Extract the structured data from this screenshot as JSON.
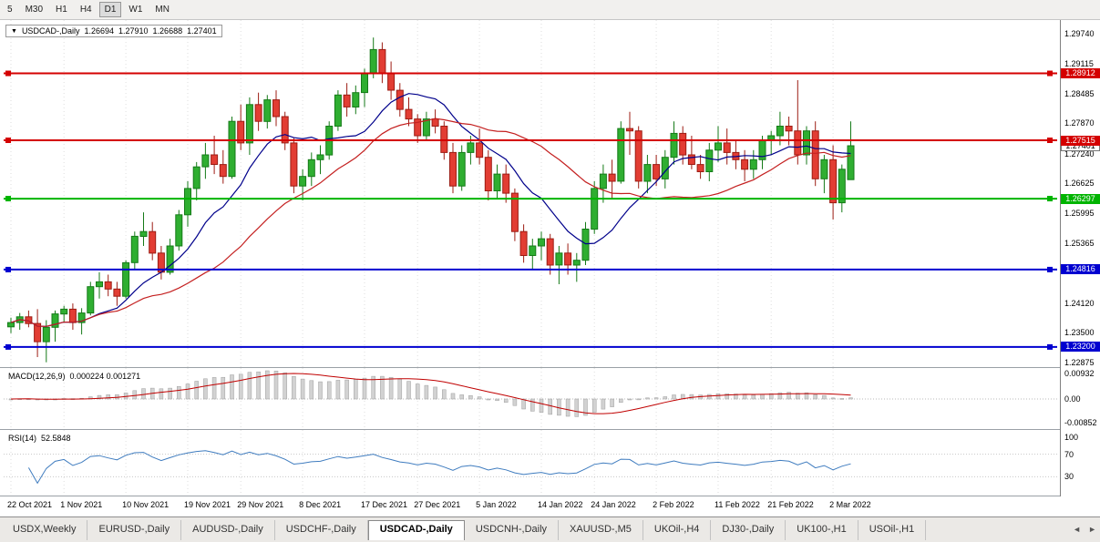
{
  "toolbar": {
    "timeframes": [
      "5",
      "M30",
      "H1",
      "H4",
      "D1",
      "W1",
      "MN"
    ],
    "active_timeframe": "D1"
  },
  "chart_title": {
    "arrow": "▼",
    "symbol": "USDCAD-,Daily",
    "open": "1.26694",
    "high": "1.27910",
    "low": "1.26688",
    "close": "1.27401"
  },
  "chart_data": {
    "type": "candlestick",
    "symbol": "USDCAD-",
    "timeframe": "Daily",
    "y_axis": {
      "top_price": 1.2974,
      "bottom_price": 1.22875,
      "labels": [
        "1.29740",
        "1.29115",
        "1.28485",
        "1.27870",
        "1.27240",
        "1.26625",
        "1.25995",
        "1.25365",
        "1.24120",
        "1.23500",
        "1.22875"
      ]
    },
    "date_ticks": [
      {
        "label": "22 Oct 2021",
        "bar": 0
      },
      {
        "label": "1 Nov 2021",
        "bar": 6
      },
      {
        "label": "10 Nov 2021",
        "bar": 13
      },
      {
        "label": "19 Nov 2021",
        "bar": 20
      },
      {
        "label": "29 Nov 2021",
        "bar": 26
      },
      {
        "label": "8 Dec 2021",
        "bar": 33
      },
      {
        "label": "17 Dec 2021",
        "bar": 40
      },
      {
        "label": "27 Dec 2021",
        "bar": 46
      },
      {
        "label": "5 Jan 2022",
        "bar": 53
      },
      {
        "label": "14 Jan 2022",
        "bar": 60
      },
      {
        "label": "24 Jan 2022",
        "bar": 66
      },
      {
        "label": "2 Feb 2022",
        "bar": 73
      },
      {
        "label": "11 Feb 2022",
        "bar": 80
      },
      {
        "label": "21 Feb 2022",
        "bar": 86
      },
      {
        "label": "2 Mar 2022",
        "bar": 93
      }
    ],
    "ohlc": [
      [
        1.2362,
        1.2381,
        1.2349,
        1.2371
      ],
      [
        1.2371,
        1.2391,
        1.2356,
        1.2383
      ],
      [
        1.2383,
        1.2396,
        1.2361,
        1.2369
      ],
      [
        1.2369,
        1.2399,
        1.2299,
        1.2331
      ],
      [
        1.2331,
        1.2376,
        1.2288,
        1.2361
      ],
      [
        1.2361,
        1.2396,
        1.2331,
        1.2389
      ],
      [
        1.2389,
        1.2406,
        1.2371,
        1.2399
      ],
      [
        1.2399,
        1.2411,
        1.2356,
        1.2371
      ],
      [
        1.2371,
        1.2401,
        1.2346,
        1.2391
      ],
      [
        1.2391,
        1.2456,
        1.2386,
        1.2446
      ],
      [
        1.2446,
        1.2476,
        1.2421,
        1.2456
      ],
      [
        1.2456,
        1.2471,
        1.2426,
        1.2441
      ],
      [
        1.2441,
        1.2456,
        1.2406,
        1.2426
      ],
      [
        1.2426,
        1.2501,
        1.2421,
        1.2496
      ],
      [
        1.2496,
        1.2561,
        1.2481,
        1.2551
      ],
      [
        1.2551,
        1.2601,
        1.2531,
        1.2561
      ],
      [
        1.2561,
        1.2581,
        1.2501,
        1.2516
      ],
      [
        1.2516,
        1.2531,
        1.2461,
        1.2476
      ],
      [
        1.2476,
        1.2546,
        1.2471,
        1.2531
      ],
      [
        1.2531,
        1.2606,
        1.2521,
        1.2596
      ],
      [
        1.2596,
        1.2666,
        1.2571,
        1.2651
      ],
      [
        1.2651,
        1.2706,
        1.2626,
        1.2696
      ],
      [
        1.2696,
        1.2746,
        1.2671,
        1.2721
      ],
      [
        1.2721,
        1.2761,
        1.2681,
        1.2701
      ],
      [
        1.2701,
        1.2731,
        1.2661,
        1.2676
      ],
      [
        1.2676,
        1.2801,
        1.2671,
        1.2791
      ],
      [
        1.2791,
        1.2826,
        1.2731,
        1.2746
      ],
      [
        1.2746,
        1.2841,
        1.2721,
        1.2826
      ],
      [
        1.2826,
        1.2851,
        1.2771,
        1.2791
      ],
      [
        1.2791,
        1.2846,
        1.2776,
        1.2836
      ],
      [
        1.2836,
        1.2856,
        1.2781,
        1.2801
      ],
      [
        1.2801,
        1.2811,
        1.2731,
        1.2746
      ],
      [
        1.2746,
        1.2756,
        1.2641,
        1.2656
      ],
      [
        1.2656,
        1.2691,
        1.2626,
        1.2676
      ],
      [
        1.2676,
        1.2726,
        1.2656,
        1.2711
      ],
      [
        1.2711,
        1.2741,
        1.2681,
        1.2721
      ],
      [
        1.2721,
        1.2791,
        1.2711,
        1.2781
      ],
      [
        1.2781,
        1.2856,
        1.2771,
        1.2846
      ],
      [
        1.2846,
        1.2871,
        1.2801,
        1.2821
      ],
      [
        1.2821,
        1.2866,
        1.2806,
        1.2851
      ],
      [
        1.2851,
        1.2901,
        1.2821,
        1.2891
      ],
      [
        1.2891,
        1.2966,
        1.2881,
        1.2941
      ],
      [
        1.2941,
        1.2956,
        1.2871,
        1.2891
      ],
      [
        1.2891,
        1.2916,
        1.2836,
        1.2856
      ],
      [
        1.2856,
        1.2871,
        1.2801,
        1.2816
      ],
      [
        1.2816,
        1.2841,
        1.2781,
        1.2796
      ],
      [
        1.2796,
        1.2806,
        1.2746,
        1.2761
      ],
      [
        1.2761,
        1.2811,
        1.2751,
        1.2796
      ],
      [
        1.2796,
        1.2816,
        1.2766,
        1.2781
      ],
      [
        1.2781,
        1.2791,
        1.2711,
        1.2726
      ],
      [
        1.2726,
        1.2746,
        1.2641,
        1.2656
      ],
      [
        1.2656,
        1.2741,
        1.2646,
        1.2726
      ],
      [
        1.2726,
        1.2761,
        1.2701,
        1.2746
      ],
      [
        1.2746,
        1.2776,
        1.2701,
        1.2716
      ],
      [
        1.2716,
        1.2731,
        1.2626,
        1.2646
      ],
      [
        1.2646,
        1.2701,
        1.2631,
        1.2681
      ],
      [
        1.2681,
        1.2701,
        1.2621,
        1.2641
      ],
      [
        1.2641,
        1.2651,
        1.2541,
        1.2561
      ],
      [
        1.2561,
        1.2576,
        1.2496,
        1.2511
      ],
      [
        1.2511,
        1.2546,
        1.2481,
        1.2531
      ],
      [
        1.2531,
        1.2561,
        1.2501,
        1.2546
      ],
      [
        1.2546,
        1.2556,
        1.2471,
        1.2491
      ],
      [
        1.2491,
        1.2531,
        1.2451,
        1.2516
      ],
      [
        1.2516,
        1.2536,
        1.2471,
        1.2491
      ],
      [
        1.2491,
        1.2516,
        1.2456,
        1.2501
      ],
      [
        1.2501,
        1.2581,
        1.2491,
        1.2566
      ],
      [
        1.2566,
        1.2666,
        1.2556,
        1.2651
      ],
      [
        1.2651,
        1.2701,
        1.2621,
        1.2681
      ],
      [
        1.2681,
        1.2711,
        1.2631,
        1.2666
      ],
      [
        1.2666,
        1.2791,
        1.2661,
        1.2776
      ],
      [
        1.2776,
        1.2811,
        1.2721,
        1.2771
      ],
      [
        1.2771,
        1.2781,
        1.2651,
        1.2666
      ],
      [
        1.2666,
        1.2721,
        1.2641,
        1.2701
      ],
      [
        1.2701,
        1.2721,
        1.2656,
        1.2671
      ],
      [
        1.2671,
        1.2731,
        1.2651,
        1.2716
      ],
      [
        1.2716,
        1.2791,
        1.2701,
        1.2766
      ],
      [
        1.2766,
        1.2781,
        1.2701,
        1.2721
      ],
      [
        1.2721,
        1.2761,
        1.2691,
        1.2701
      ],
      [
        1.2701,
        1.2721,
        1.2671,
        1.2686
      ],
      [
        1.2686,
        1.2746,
        1.2666,
        1.2731
      ],
      [
        1.2731,
        1.2781,
        1.2706,
        1.2746
      ],
      [
        1.2746,
        1.2776,
        1.2701,
        1.2726
      ],
      [
        1.2726,
        1.2751,
        1.2691,
        1.2711
      ],
      [
        1.2711,
        1.2731,
        1.2666,
        1.2691
      ],
      [
        1.2691,
        1.2731,
        1.2671,
        1.2711
      ],
      [
        1.2711,
        1.2761,
        1.2691,
        1.2751
      ],
      [
        1.2751,
        1.2771,
        1.2721,
        1.2761
      ],
      [
        1.2761,
        1.2811,
        1.2741,
        1.2781
      ],
      [
        1.2781,
        1.2801,
        1.2741,
        1.2771
      ],
      [
        1.2771,
        1.2877,
        1.2701,
        1.2721
      ],
      [
        1.2721,
        1.2781,
        1.2701,
        1.2771
      ],
      [
        1.2771,
        1.2791,
        1.2656,
        1.2671
      ],
      [
        1.2671,
        1.2721,
        1.2641,
        1.2711
      ],
      [
        1.2711,
        1.2741,
        1.2586,
        1.2621
      ],
      [
        1.2621,
        1.2701,
        1.2601,
        1.2691
      ],
      [
        1.26694,
        1.2791,
        1.26688,
        1.27401
      ]
    ],
    "hlines": [
      {
        "price": 1.28912,
        "label": "1.28912",
        "color": "#d40000"
      },
      {
        "price": 1.27515,
        "label": "1.27515",
        "color": "#d40000"
      },
      {
        "price": 1.26297,
        "label": "1.26297",
        "color": "#00b400"
      },
      {
        "price": 1.24816,
        "label": "1.24816",
        "color": "#0000d0"
      },
      {
        "price": 1.232,
        "label": "1.23200",
        "color": "#0000d0"
      }
    ],
    "current_price": {
      "value": 1.27401,
      "label": "1.27401"
    },
    "ma": [
      {
        "period": 10,
        "color": "#00008b"
      },
      {
        "period": 24,
        "color": "#c42020"
      }
    ],
    "colors": {
      "up": "#2fae31",
      "up_border": "#157a18",
      "down": "#e23d33",
      "down_border": "#9c1c13",
      "grid": "#dedede"
    },
    "indicators": {
      "macd": {
        "title": "MACD(12,26,9)",
        "display_values": "0.000224 0.001271",
        "params": [
          12,
          26,
          9
        ],
        "axis_labels": [
          "0.00932",
          "0.00",
          "-0.00852"
        ],
        "hist_color": "#d2d2d2",
        "hist_border": "#9e9e9e",
        "signal_color": "#c00000"
      },
      "rsi": {
        "title": "RSI(14)",
        "display_value": "52.5848",
        "period": 14,
        "axis_labels": [
          "100",
          "70",
          "30"
        ],
        "levels": [
          70,
          30
        ],
        "line_color": "#3f7cbf"
      }
    }
  },
  "tabs": {
    "items": [
      "USDX,Weekly",
      "EURUSD-,Daily",
      "AUDUSD-,Daily",
      "USDCHF-,Daily",
      "USDCAD-,Daily",
      "USDCNH-,Daily",
      "XAUUSD-,M5",
      "UKOil-,H4",
      "DJ30-,Daily",
      "UK100-,H1",
      "USOil-,H1"
    ],
    "active": "USDCAD-,Daily",
    "scroll_left": "◄",
    "scroll_right": "►"
  }
}
